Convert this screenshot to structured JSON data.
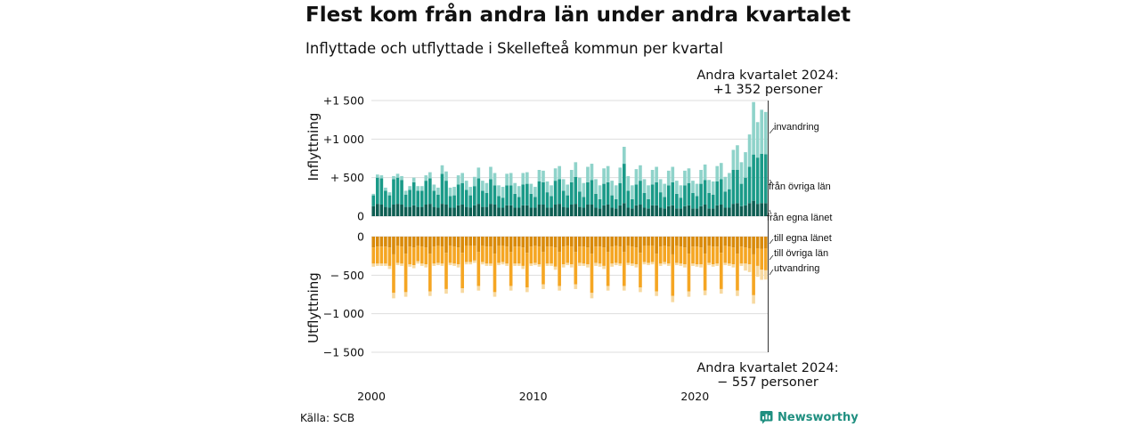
{
  "title": "Flest kom från andra län under andra kvartalet",
  "subtitle": "Inflyttade och utflyttade i Skellefteå kommun per kvartal",
  "source": "Källa: SCB",
  "brand": "Newsworthy",
  "colors": {
    "in_own": "#0d5e52",
    "in_other": "#1a9a88",
    "in_immigration": "#8fd3ca",
    "out_own": "#d98a0a",
    "out_other": "#f5a623",
    "out_emigration": "#f7d9a0",
    "brand": "#1f8f80"
  },
  "annotations": {
    "top_line1": "Andra kvartalet 2024:",
    "top_line2": "+1 352 personer",
    "bottom_line1": "Andra kvartalet 2024:",
    "bottom_line2": "−  557 personer"
  },
  "chart_data": {
    "type": "bar",
    "stacked": true,
    "x_start": "2000 Q1",
    "x_end": "2024 Q2",
    "x_ticks": [
      "2000",
      "2010",
      "2020"
    ],
    "y_ticks_in": [
      "+1 500",
      "+1 000",
      "+ 500",
      "0"
    ],
    "y_ticks_out": [
      "0",
      "− 500",
      "−1 000",
      "−1 500"
    ],
    "ylabel_in": "Inflyttning",
    "ylabel_out": "Utflyttning",
    "ylim": [
      -1500,
      1500
    ],
    "legend": {
      "in_immigration": "invandring",
      "in_other": "från övriga län",
      "in_own": "från egna länet",
      "out_own": "till egna länet",
      "out_other": "till övriga län",
      "out_emigration": "utvandring"
    },
    "total_in": [
      290,
      540,
      530,
      370,
      310,
      520,
      550,
      520,
      330,
      390,
      500,
      390,
      390,
      530,
      570,
      410,
      370,
      660,
      580,
      370,
      380,
      530,
      560,
      460,
      380,
      510,
      630,
      460,
      430,
      640,
      560,
      400,
      380,
      550,
      560,
      430,
      390,
      560,
      570,
      420,
      380,
      600,
      590,
      450,
      400,
      620,
      650,
      480,
      410,
      600,
      700,
      500,
      430,
      640,
      680,
      480,
      400,
      620,
      650,
      460,
      400,
      630,
      900,
      520,
      400,
      610,
      660,
      480,
      400,
      600,
      640,
      480,
      420,
      590,
      640,
      460,
      400,
      590,
      620,
      460,
      420,
      600,
      670,
      470,
      450,
      650,
      690,
      510,
      560,
      860,
      920,
      700,
      830,
      1060,
      1480,
      1220,
      1380,
      1352
    ],
    "immigration": [
      20,
      40,
      40,
      40,
      40,
      40,
      50,
      50,
      50,
      50,
      60,
      60,
      60,
      70,
      80,
      80,
      90,
      110,
      120,
      110,
      110,
      120,
      130,
      120,
      110,
      120,
      140,
      130,
      130,
      160,
      160,
      140,
      140,
      150,
      160,
      140,
      140,
      150,
      150,
      130,
      130,
      150,
      150,
      140,
      140,
      160,
      170,
      150,
      140,
      160,
      190,
      180,
      180,
      200,
      210,
      190,
      180,
      200,
      210,
      190,
      180,
      200,
      220,
      190,
      180,
      200,
      200,
      180,
      180,
      190,
      200,
      170,
      170,
      190,
      200,
      170,
      160,
      190,
      190,
      160,
      160,
      180,
      200,
      170,
      170,
      200,
      210,
      190,
      210,
      260,
      320,
      280,
      330,
      420,
      680,
      460,
      570,
      550
    ],
    "own_county": [
      130,
      160,
      150,
      120,
      110,
      150,
      160,
      150,
      120,
      120,
      140,
      120,
      120,
      150,
      160,
      120,
      110,
      160,
      150,
      110,
      110,
      140,
      150,
      120,
      110,
      140,
      160,
      120,
      120,
      160,
      150,
      110,
      110,
      140,
      140,
      110,
      110,
      140,
      140,
      110,
      110,
      150,
      150,
      110,
      110,
      150,
      160,
      120,
      110,
      150,
      160,
      120,
      110,
      150,
      150,
      110,
      100,
      140,
      150,
      110,
      100,
      140,
      170,
      110,
      100,
      140,
      150,
      110,
      100,
      140,
      140,
      110,
      100,
      130,
      140,
      100,
      100,
      130,
      140,
      100,
      100,
      130,
      150,
      100,
      100,
      140,
      150,
      110,
      110,
      160,
      170,
      130,
      140,
      170,
      200,
      160,
      170,
      170
    ],
    "total_out": [
      390,
      380,
      380,
      380,
      420,
      800,
      370,
      380,
      780,
      390,
      410,
      350,
      380,
      400,
      770,
      380,
      370,
      380,
      740,
      370,
      380,
      400,
      730,
      360,
      360,
      340,
      700,
      360,
      380,
      380,
      780,
      370,
      360,
      380,
      700,
      380,
      380,
      420,
      720,
      380,
      370,
      390,
      680,
      380,
      380,
      430,
      700,
      400,
      370,
      400,
      680,
      380,
      380,
      400,
      800,
      380,
      390,
      420,
      700,
      390,
      370,
      380,
      700,
      370,
      380,
      400,
      720,
      360,
      370,
      360,
      770,
      380,
      360,
      380,
      850,
      370,
      380,
      400,
      780,
      380,
      390,
      400,
      760,
      370,
      390,
      380,
      740,
      370,
      380,
      400,
      770,
      380,
      440,
      460,
      870,
      520,
      560,
      557
    ],
    "emigration": [
      40,
      30,
      30,
      30,
      40,
      70,
      30,
      30,
      60,
      30,
      40,
      30,
      30,
      40,
      60,
      30,
      30,
      30,
      60,
      30,
      30,
      40,
      60,
      30,
      30,
      30,
      60,
      30,
      30,
      30,
      60,
      30,
      30,
      30,
      60,
      30,
      30,
      40,
      60,
      30,
      30,
      30,
      60,
      30,
      30,
      40,
      60,
      40,
      30,
      40,
      60,
      40,
      30,
      40,
      70,
      40,
      40,
      40,
      60,
      40,
      30,
      30,
      60,
      30,
      30,
      40,
      60,
      30,
      30,
      30,
      60,
      30,
      30,
      30,
      80,
      30,
      30,
      40,
      70,
      30,
      30,
      40,
      60,
      30,
      30,
      30,
      60,
      30,
      30,
      40,
      70,
      30,
      90,
      100,
      110,
      140,
      130,
      120
    ],
    "out_own_county": [
      140,
      130,
      130,
      130,
      140,
      230,
      120,
      130,
      220,
      130,
      140,
      120,
      130,
      140,
      220,
      130,
      120,
      130,
      210,
      120,
      130,
      140,
      210,
      120,
      120,
      120,
      200,
      120,
      130,
      130,
      220,
      120,
      120,
      130,
      200,
      130,
      130,
      140,
      210,
      130,
      120,
      130,
      200,
      130,
      130,
      140,
      200,
      130,
      120,
      130,
      200,
      130,
      130,
      140,
      220,
      130,
      130,
      140,
      200,
      130,
      120,
      130,
      200,
      120,
      130,
      140,
      210,
      120,
      120,
      120,
      220,
      130,
      120,
      130,
      230,
      120,
      130,
      140,
      220,
      130,
      130,
      140,
      220,
      120,
      130,
      130,
      210,
      120,
      130,
      140,
      220,
      130,
      140,
      150,
      230,
      150,
      160,
      150
    ]
  }
}
